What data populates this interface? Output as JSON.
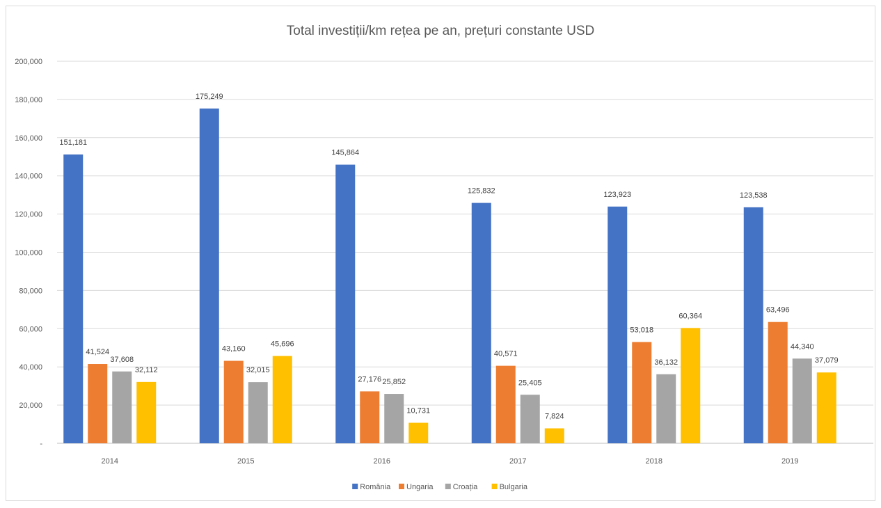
{
  "chart_data": {
    "type": "bar",
    "title": "Total investiții/km rețea pe an, prețuri constante USD",
    "xlabel": "",
    "ylabel": "",
    "categories": [
      "2014",
      "2015",
      "2016",
      "2017",
      "2018",
      "2019"
    ],
    "series": [
      {
        "name": "România",
        "color": "#4472C4",
        "values": [
          151181,
          175249,
          145864,
          125832,
          123923,
          123538
        ]
      },
      {
        "name": "Ungaria",
        "color": "#ED7D31",
        "values": [
          41524,
          43160,
          27176,
          40571,
          53018,
          63496
        ]
      },
      {
        "name": "Croația",
        "color": "#A5A5A5",
        "values": [
          37608,
          32015,
          25852,
          25405,
          36132,
          44340
        ]
      },
      {
        "name": "Bulgaria",
        "color": "#FFC000",
        "values": [
          32112,
          45696,
          10731,
          7824,
          60364,
          37079
        ]
      }
    ],
    "data_labels": [
      [
        "151,181",
        "175,249",
        "145,864",
        "125,832",
        "123,923",
        "123,538"
      ],
      [
        "41,524",
        "43,160",
        "27,176",
        "40,571",
        "53,018",
        "63,496"
      ],
      [
        "37,608",
        "32,015",
        "25,852",
        "25,405",
        "36,132",
        "44,340"
      ],
      [
        "32,112",
        "45,696",
        "10,731",
        "7,824",
        "60,364",
        "37,079"
      ]
    ],
    "ylim": [
      0,
      200000
    ],
    "yticks": [
      0,
      20000,
      40000,
      60000,
      80000,
      100000,
      120000,
      140000,
      160000,
      180000,
      200000
    ],
    "ytick_labels": [
      "-",
      "20,000",
      "40,000",
      "60,000",
      "80,000",
      "100,000",
      "120,000",
      "140,000",
      "160,000",
      "180,000",
      "200,000"
    ],
    "grid": true,
    "legend_position": "bottom"
  }
}
